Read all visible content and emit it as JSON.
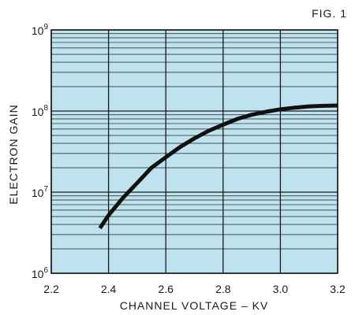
{
  "figure_label": "FIG. 1",
  "colors": {
    "plot_background": "#bfe3ee",
    "grid": "#1a1a1a",
    "curve": "#111111",
    "text": "#1a1a1a"
  },
  "chart_data": {
    "type": "line",
    "title": "",
    "xlabel": "CHANNEL VOLTAGE – KV",
    "ylabel": "ELECTRON GAIN",
    "xlim": [
      2.2,
      3.2
    ],
    "ylim": [
      1000000,
      1000000000
    ],
    "yscale": "log",
    "grid": true,
    "x_ticks": [
      {
        "value": 2.2,
        "label": "2.2"
      },
      {
        "value": 2.4,
        "label": "2.4"
      },
      {
        "value": 2.6,
        "label": "2.6"
      },
      {
        "value": 2.8,
        "label": "2.8"
      },
      {
        "value": 3.0,
        "label": "3.0"
      },
      {
        "value": 3.2,
        "label": "3.2"
      }
    ],
    "y_ticks": [
      {
        "value": 1000000,
        "base": "10",
        "exp": "6"
      },
      {
        "value": 10000000,
        "base": "10",
        "exp": "7"
      },
      {
        "value": 100000000,
        "base": "10",
        "exp": "8"
      },
      {
        "value": 1000000000,
        "base": "10",
        "exp": "9"
      }
    ],
    "series": [
      {
        "x": [
          2.37,
          2.4,
          2.45,
          2.5,
          2.55,
          2.6,
          2.65,
          2.7,
          2.75,
          2.8,
          2.85,
          2.9,
          2.95,
          3.0,
          3.05,
          3.1,
          3.15,
          3.2
        ],
        "y": [
          3600000,
          5200000,
          8500000,
          13000000,
          20000000,
          27000000,
          36000000,
          46000000,
          57000000,
          68000000,
          80000000,
          90000000,
          98000000,
          105000000,
          110000000,
          114000000,
          116000000,
          117000000
        ]
      }
    ]
  }
}
